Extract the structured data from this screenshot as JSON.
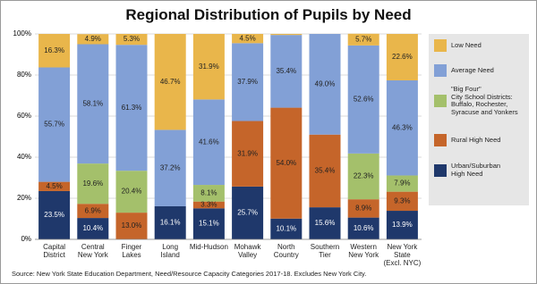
{
  "chart_data": {
    "type": "stacked_bar",
    "title": "Regional Distribution of Pupils by Need",
    "source": "Source: New York State Education Department, Need/Resource Capacity Categories 2017-18. Excludes New York City.",
    "categories": [
      "Capital\nDistrict",
      "Central\nNew York",
      "Finger\nLakes",
      "Long\nIsland",
      "Mid-Hudson",
      "Mohawk\nValley",
      "North\nCountry",
      "Southern\nTier",
      "Western\nNew York",
      "New York\nState\n(Excl. NYC)"
    ],
    "series": [
      {
        "name": "Urban/Suburban\nHigh Need",
        "color": "#1f386b",
        "text_color": "#ffffff",
        "values": [
          23.5,
          10.4,
          0,
          16.1,
          15.1,
          25.7,
          10.1,
          15.6,
          10.6,
          13.9
        ],
        "value_labels": [
          "23.5%",
          "10.4%",
          null,
          "16.1%",
          "15.1%",
          "25.7%",
          "10.1%",
          "15.6%",
          "10.6%",
          "13.9%"
        ]
      },
      {
        "name": "Rural High Need",
        "color": "#c5652a",
        "text_color": "#222222",
        "values": [
          4.5,
          6.9,
          13.0,
          0,
          3.3,
          31.9,
          54.0,
          35.4,
          8.9,
          9.3
        ],
        "value_labels": [
          "4.5%",
          "6.9%",
          "13.0%",
          null,
          "3.3%",
          "31.9%",
          "54.0%",
          "35.4%",
          "8.9%",
          "9.3%"
        ]
      },
      {
        "name": "\"Big Four\"\nCity School Districts:\nBuffalo, Rochester,\nSyracuse and Yonkers",
        "color": "#a4c06b",
        "text_color": "#222222",
        "values": [
          0,
          19.6,
          20.4,
          0,
          8.1,
          0,
          0,
          0,
          22.3,
          7.9
        ],
        "value_labels": [
          null,
          "19.6%",
          "20.4%",
          null,
          "8.1%",
          null,
          null,
          null,
          "22.3%",
          "7.9%"
        ]
      },
      {
        "name": "Average Need",
        "color": "#82a0d6",
        "text_color": "#222222",
        "values": [
          55.7,
          58.1,
          61.3,
          37.2,
          41.6,
          37.9,
          35.4,
          49.0,
          52.6,
          46.3
        ],
        "value_labels": [
          "55.7%",
          "58.1%",
          "61.3%",
          "37.2%",
          "41.6%",
          "37.9%",
          "35.4%",
          "49.0%",
          "52.6%",
          "46.3%"
        ]
      },
      {
        "name": "Low Need",
        "color": "#e9b64b",
        "text_color": "#222222",
        "values": [
          16.3,
          4.9,
          5.3,
          46.7,
          31.9,
          4.5,
          0.5,
          0,
          5.7,
          22.6
        ],
        "value_labels": [
          "16.3%",
          "4.9%",
          "5.3%",
          "46.7%",
          "31.9%",
          "4.5%",
          null,
          null,
          "5.7%",
          "22.6%"
        ]
      }
    ],
    "ylim": [
      0,
      100
    ],
    "yticks": [
      {
        "value": 0,
        "label": "0%"
      },
      {
        "value": 20,
        "label": "20%"
      },
      {
        "value": 40,
        "label": "40%"
      },
      {
        "value": 60,
        "label": "60%"
      },
      {
        "value": 80,
        "label": "80%"
      },
      {
        "value": 100,
        "label": "100%"
      }
    ],
    "grid": true
  }
}
